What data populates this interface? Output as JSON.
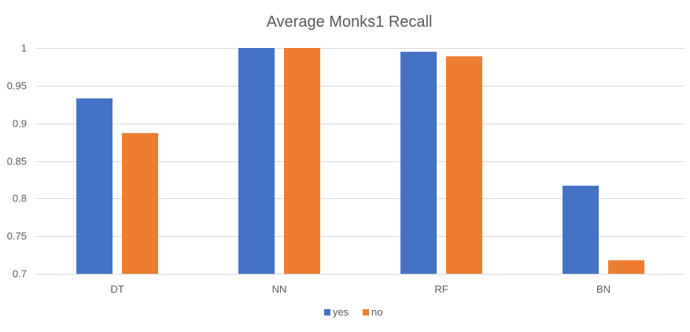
{
  "chart_data": {
    "type": "bar",
    "title": "Average Monks1 Recall",
    "xlabel": "",
    "ylabel": "",
    "categories": [
      "DT",
      "NN",
      "RF",
      "BN"
    ],
    "series": [
      {
        "name": "yes",
        "color": "#4472C4",
        "values": [
          0.933,
          1.0,
          0.995,
          0.817
        ]
      },
      {
        "name": "no",
        "color": "#ED7D31",
        "values": [
          0.887,
          1.0,
          0.989,
          0.718
        ]
      }
    ],
    "ylim": [
      0.7,
      1.0
    ],
    "yticks": [
      0.7,
      0.75,
      0.8,
      0.85,
      0.9,
      0.95,
      1
    ],
    "ytick_labels": [
      "0.7",
      "0.75",
      "0.8",
      "0.85",
      "0.9",
      "0.95",
      "1"
    ],
    "grid": true,
    "legend_position": "bottom"
  }
}
